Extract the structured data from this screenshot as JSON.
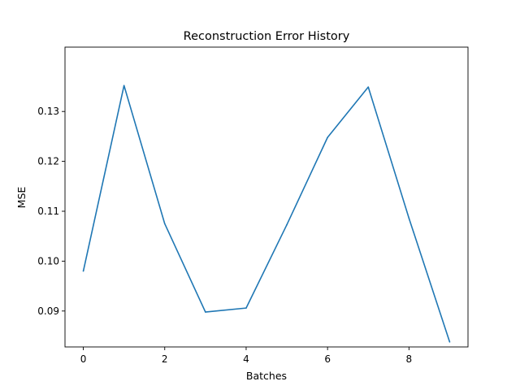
{
  "chart_data": {
    "type": "line",
    "title": "Reconstruction Error History",
    "xlabel": "Batches",
    "ylabel": "MSE",
    "xlim": [
      -0.45,
      9.45
    ],
    "ylim": [
      0.0828,
      0.1429
    ],
    "xticks": [
      0,
      2,
      4,
      6,
      8
    ],
    "xtick_labels": [
      "0",
      "2",
      "4",
      "6",
      "8"
    ],
    "yticks": [
      0.09,
      0.1,
      0.11,
      0.12,
      0.13
    ],
    "ytick_labels": [
      "0.09",
      "0.10",
      "0.11",
      "0.12",
      "0.13"
    ],
    "grid": false,
    "series": [
      {
        "color": "#1f77b4",
        "x": [
          0,
          1,
          2,
          3,
          4,
          5,
          6,
          7,
          8,
          9
        ],
        "y": [
          0.098,
          0.1352,
          0.1075,
          0.0898,
          0.0906,
          0.1073,
          0.1248,
          0.1349,
          0.1086,
          0.0838
        ]
      }
    ]
  }
}
